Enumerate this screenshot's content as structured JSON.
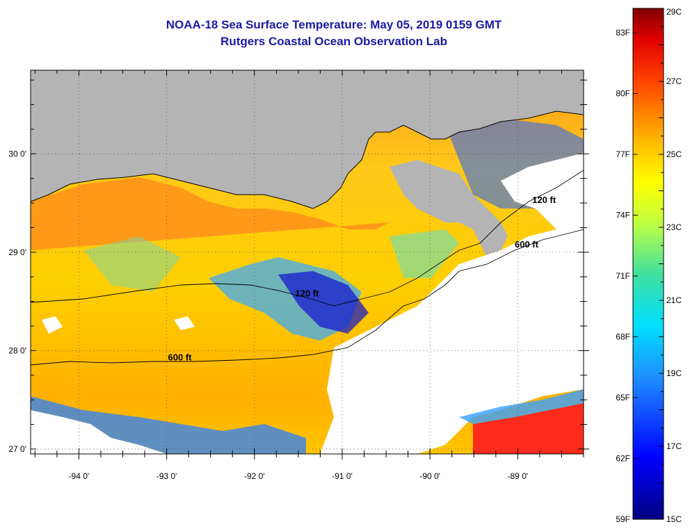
{
  "title": "NOAA-18 Sea Surface Temperature:  May 05, 2019 0159 GMT",
  "subtitle": "Rutgers Coastal Ocean Observation Lab",
  "map": {
    "lon_range": [
      -94.55,
      -88.25
    ],
    "lat_range": [
      26.95,
      30.85
    ],
    "lon_ticks": [
      {
        "value": -94,
        "label": "-94 0'"
      },
      {
        "value": -93,
        "label": "-93 0'"
      },
      {
        "value": -92,
        "label": "-92 0'"
      },
      {
        "value": -91,
        "label": "-91 0'"
      },
      {
        "value": -90,
        "label": "-90 0'"
      },
      {
        "value": -89,
        "label": "-89 0'"
      }
    ],
    "lat_ticks": [
      {
        "value": 27,
        "label": "27 0'"
      },
      {
        "value": 28,
        "label": "28 0'"
      },
      {
        "value": 29,
        "label": "29 0'"
      },
      {
        "value": 30,
        "label": "30 0'"
      }
    ],
    "contour_labels": [
      {
        "text": "120 ft",
        "lon": -91.4,
        "lat": 28.55
      },
      {
        "text": "600 ft",
        "lon": -92.85,
        "lat": 27.9
      },
      {
        "text": "120 ft",
        "lon": -88.7,
        "lat": 29.5
      },
      {
        "text": "600 ft",
        "lon": -88.9,
        "lat": 29.05
      }
    ],
    "colors": {
      "land": "#b4b4b4",
      "cloud": "#ffffff"
    }
  },
  "colorbar": {
    "range_c": [
      15,
      29
    ],
    "celsius_labels": [
      "29C",
      "27C",
      "25C",
      "23C",
      "21C",
      "19C",
      "17C",
      "15C"
    ],
    "fahrenheit_labels": [
      "83F",
      "80F",
      "77F",
      "74F",
      "71F",
      "68F",
      "65F",
      "62F",
      "59F"
    ]
  }
}
